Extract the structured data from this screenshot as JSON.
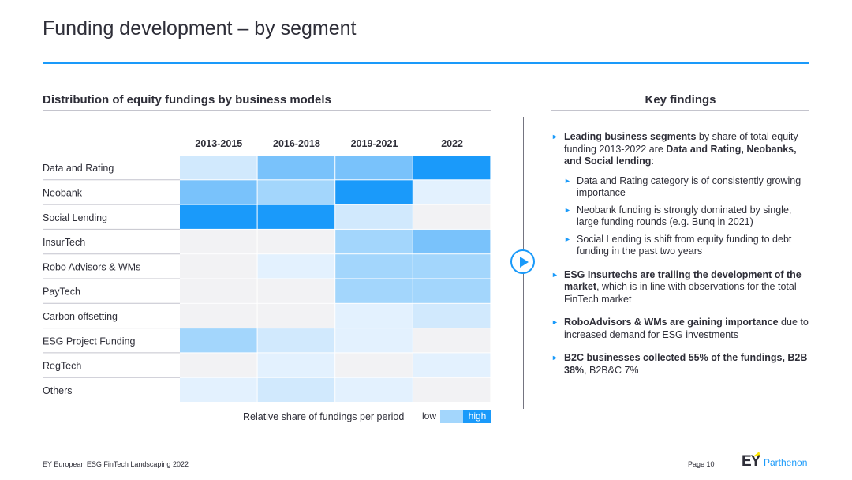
{
  "title": "Funding development – by segment",
  "left_section_title": "Distribution of equity fundings by business models",
  "right_section_title": "Key findings",
  "legend": {
    "label": "Relative share of fundings per period",
    "low": "low",
    "high": "high"
  },
  "colors": {
    "accent": "#1a9afa",
    "empty": "#f2f2f4",
    "levels": [
      "#f2f2f4",
      "#e3f1fe",
      "#d1e9fd",
      "#a3d6fc",
      "#79c2fb",
      "#1a9afa"
    ]
  },
  "chart_data": {
    "type": "heatmap",
    "columns": [
      "2013-2015",
      "2016-2018",
      "2019-2021",
      "2022"
    ],
    "rows": [
      "Data and Rating",
      "Neobank",
      "Social Lending",
      "InsurTech",
      "Robo Advisors & WMs",
      "PayTech",
      "Carbon offsetting",
      "ESG Project Funding",
      "RegTech",
      "Others"
    ],
    "values": [
      [
        2,
        4,
        4,
        5
      ],
      [
        4,
        3,
        5,
        1
      ],
      [
        5,
        5,
        2,
        0
      ],
      [
        0,
        0,
        3,
        4
      ],
      [
        0,
        1,
        3,
        3
      ],
      [
        0,
        0,
        3,
        3
      ],
      [
        0,
        0,
        1,
        2
      ],
      [
        3,
        2,
        1,
        0
      ],
      [
        0,
        1,
        0,
        1
      ],
      [
        1,
        2,
        1,
        0
      ]
    ],
    "scale": "relative share per period, 0 = low/none, 5 = high"
  },
  "findings": [
    {
      "parts": [
        {
          "t": "Leading business segments",
          "b": true
        },
        {
          "t": " by share of total equity funding 2013-2022 are ",
          "b": false
        },
        {
          "t": "Data and Rating, Neobanks, and Social lending",
          "b": true
        },
        {
          "t": ":",
          "b": false
        }
      ],
      "subs": [
        "Data and Rating category is of consistently growing importance",
        "Neobank funding is strongly dominated by single, large funding rounds (e.g. Bunq in 2021)",
        "Social Lending is shift from equity funding to debt funding in the past two years"
      ]
    },
    {
      "parts": [
        {
          "t": "ESG Insurtechs are trailing the development of the market",
          "b": true
        },
        {
          "t": ", which is in line with observations for the total FinTech market",
          "b": false
        }
      ],
      "subs": []
    },
    {
      "parts": [
        {
          "t": "RoboAdvisors & WMs are gaining importance",
          "b": true
        },
        {
          "t": " due to increased demand for ESG investments",
          "b": false
        }
      ],
      "subs": []
    },
    {
      "parts": [
        {
          "t": "B2C businesses collected 55% of the fundings, B2B 38%",
          "b": true
        },
        {
          "t": ", B2B&C 7%",
          "b": false
        }
      ],
      "subs": []
    }
  ],
  "footer": {
    "left": "EY European ESG FinTech Landscaping 2022",
    "page": "Page 10"
  },
  "logo": {
    "brand": "EY",
    "name": "Parthenon"
  }
}
